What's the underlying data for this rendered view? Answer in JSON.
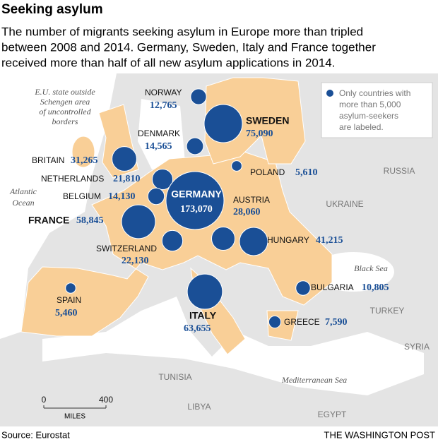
{
  "title": "Seeking asylum",
  "subtitle": [
    "The number of migrants seeking asylum in Europe more than tripled",
    "between 2008 and 2014. Germany, Sweden, Italy and France together",
    "received more than half of all new asylum applications in 2014."
  ],
  "note": [
    "E.U. state outside",
    "Schengen area",
    "of uncontrolled",
    "borders"
  ],
  "legend": [
    "Only countries with",
    "more than 5,000",
    "asylum-seekers",
    "are labeled."
  ],
  "countries": [
    {
      "name": "NORWAY",
      "value": 12765,
      "label": "12,765"
    },
    {
      "name": "SWEDEN",
      "value": 75090,
      "label": "75,090"
    },
    {
      "name": "DENMARK",
      "value": 14565,
      "label": "14,565"
    },
    {
      "name": "BRITAIN",
      "value": 31265,
      "label": "31,265"
    },
    {
      "name": "NETHERLANDS",
      "value": 21810,
      "label": "21,810"
    },
    {
      "name": "BELGIUM",
      "value": 14130,
      "label": "14,130"
    },
    {
      "name": "GERMANY",
      "value": 173070,
      "label": "173,070"
    },
    {
      "name": "POLAND",
      "value": 5610,
      "label": "5,610"
    },
    {
      "name": "AUSTRIA",
      "value": 28060,
      "label": "28,060"
    },
    {
      "name": "FRANCE",
      "value": 58845,
      "label": "58,845"
    },
    {
      "name": "SWITZERLAND",
      "value": 22130,
      "label": "22,130"
    },
    {
      "name": "HUNGARY",
      "value": 41215,
      "label": "41,215"
    },
    {
      "name": "ITALY",
      "value": 63655,
      "label": "63,655"
    },
    {
      "name": "SPAIN",
      "value": 5460,
      "label": "5,460"
    },
    {
      "name": "BULGARIA",
      "value": 10805,
      "label": "10,805"
    },
    {
      "name": "GREECE",
      "value": 7590,
      "label": "7,590"
    }
  ],
  "places": [
    "RUSSIA",
    "UKRAINE",
    "TURKEY",
    "SYRIA",
    "TUNISIA",
    "LIBYA",
    "EGYPT"
  ],
  "seas": {
    "atlantic": [
      "Atlantic",
      "Ocean"
    ],
    "black": "Black Sea",
    "med": "Mediterranean Sea"
  },
  "scale": {
    "ticks": [
      0,
      400
    ],
    "unit": "MILES"
  },
  "source": "Source: Eurostat",
  "credit": "THE WASHINGTON POST"
}
